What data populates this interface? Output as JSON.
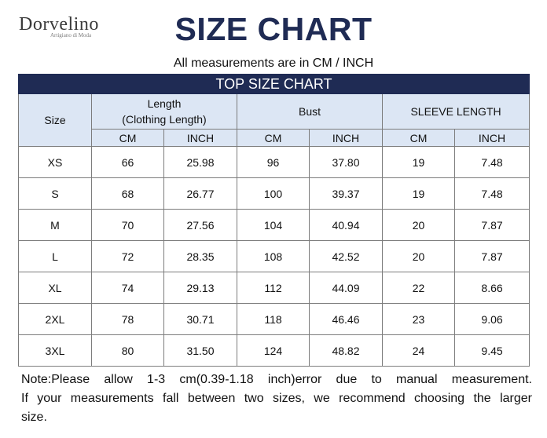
{
  "brand": {
    "name": "Dorvelino",
    "tagline": "Artigiano di Moda"
  },
  "title": "SIZE CHART",
  "subtitle": "All measurements are in CM / INCH",
  "table": {
    "banner": "TOP SIZE CHART",
    "size_header": "Size",
    "groups": [
      {
        "label_line1": "Length",
        "label_line2": "(Clothing Length)"
      },
      {
        "label_line1": "Bust"
      },
      {
        "label_line1": "SLEEVE LENGTH"
      }
    ],
    "units": [
      "CM",
      "INCH",
      "CM",
      "INCH",
      "CM",
      "INCH"
    ],
    "rows": [
      {
        "size": "XS",
        "cells": [
          "66",
          "25.98",
          "96",
          "37.80",
          "19",
          "7.48"
        ]
      },
      {
        "size": "S",
        "cells": [
          "68",
          "26.77",
          "100",
          "39.37",
          "19",
          "7.48"
        ]
      },
      {
        "size": "M",
        "cells": [
          "70",
          "27.56",
          "104",
          "40.94",
          "20",
          "7.87"
        ]
      },
      {
        "size": "L",
        "cells": [
          "72",
          "28.35",
          "108",
          "42.52",
          "20",
          "7.87"
        ]
      },
      {
        "size": "XL",
        "cells": [
          "74",
          "29.13",
          "112",
          "44.09",
          "22",
          "8.66"
        ]
      },
      {
        "size": "2XL",
        "cells": [
          "78",
          "30.71",
          "118",
          "46.46",
          "23",
          "9.06"
        ]
      },
      {
        "size": "3XL",
        "cells": [
          "80",
          "31.50",
          "124",
          "48.82",
          "24",
          "9.45"
        ]
      }
    ]
  },
  "note": {
    "line1": "Note:Please allow 1-3 cm(0.39-1.18 inch)error due to manual measurement.",
    "line2": "If your measurements fall between two sizes, we recommend choosing the larger",
    "line3": "size."
  },
  "colors": {
    "header_navy": "#1f2b54",
    "header_light": "#dce6f4"
  }
}
